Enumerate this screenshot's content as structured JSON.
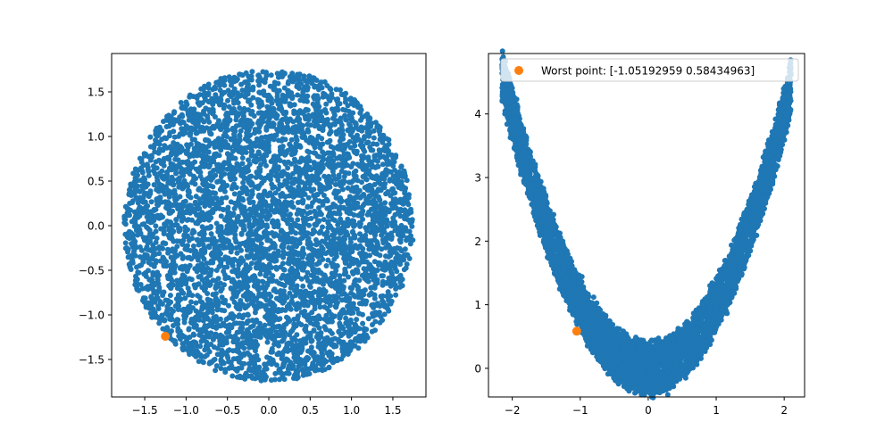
{
  "chart_data": [
    {
      "type": "scatter",
      "title": "",
      "xlabel": "",
      "ylabel": "",
      "xlim": [
        -1.9,
        1.9
      ],
      "ylim": [
        -1.92,
        1.93
      ],
      "xticks": [
        -1.5,
        -1.0,
        -0.5,
        0.0,
        0.5,
        1.0,
        1.5
      ],
      "xtick_labels": [
        "−1.5",
        "−1.0",
        "−0.5",
        "0.0",
        "0.5",
        "1.0",
        "1.5"
      ],
      "yticks": [
        -1.5,
        -1.0,
        -0.5,
        0.0,
        0.5,
        1.0,
        1.5
      ],
      "ytick_labels": [
        "−1.5",
        "−1.0",
        "−0.5",
        "0.0",
        "0.5",
        "1.0",
        "1.5"
      ],
      "grid": false,
      "series": [
        {
          "color": "#1f77b4",
          "shape": "disk",
          "radius": 1.75,
          "approx_points": 5000,
          "marker": "o",
          "description_free": true
        },
        {
          "color": "#ff7f0e",
          "marker": "o",
          "x": [
            -1.25
          ],
          "y": [
            -1.24
          ]
        }
      ]
    },
    {
      "type": "scatter",
      "title": "",
      "xlabel": "",
      "ylabel": "",
      "xlim": [
        -2.35,
        2.3
      ],
      "ylim": [
        -0.45,
        4.95
      ],
      "xticks": [
        -2,
        -1,
        0,
        1,
        2
      ],
      "xtick_labels": [
        "−2",
        "−1",
        "0",
        "1",
        "2"
      ],
      "yticks": [
        0,
        1,
        2,
        3,
        4
      ],
      "ytick_labels": [
        "0",
        "1",
        "2",
        "3",
        "4"
      ],
      "grid": false,
      "legend_placement": "upper left",
      "series": [
        {
          "color": "#1f77b4",
          "shape": "band",
          "curve": "y = x^2",
          "x_range": [
            -2.15,
            2.1
          ],
          "approx_points": 5000,
          "marker": "o"
        },
        {
          "name": "Worst point: [-1.05192959  0.58434963]",
          "color": "#ff7f0e",
          "marker": "o",
          "x": [
            -1.05192959
          ],
          "y": [
            0.58434963
          ]
        }
      ]
    }
  ]
}
